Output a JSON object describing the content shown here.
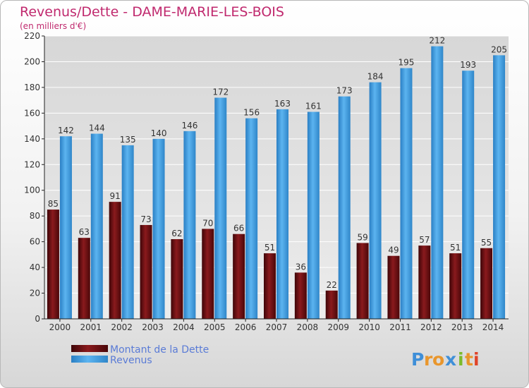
{
  "header": {
    "title": "Revenus/Dette - DAME-MARIE-LES-BOIS",
    "subtitle": "(en milliers d'€)"
  },
  "legend": {
    "dette": "Montant de la Dette",
    "revenus": "Revenus"
  },
  "logo": "Proxiti",
  "colors": {
    "dette": "#6b0f12",
    "revenus": "#3f9fe2",
    "title": "#c0296e"
  },
  "chart_data": {
    "type": "bar",
    "title": "Revenus/Dette - DAME-MARIE-LES-BOIS",
    "subtitle": "(en milliers d'€)",
    "categories": [
      "2000",
      "2001",
      "2002",
      "2003",
      "2004",
      "2005",
      "2006",
      "2007",
      "2008",
      "2009",
      "2010",
      "2011",
      "2012",
      "2013",
      "2014"
    ],
    "series": [
      {
        "name": "Montant de la Dette",
        "values": [
          85,
          63,
          91,
          73,
          62,
          70,
          66,
          51,
          36,
          22,
          59,
          49,
          57,
          51,
          55
        ]
      },
      {
        "name": "Revenus",
        "values": [
          142,
          144,
          135,
          140,
          146,
          172,
          156,
          163,
          161,
          173,
          184,
          195,
          212,
          193,
          205
        ]
      }
    ],
    "ylim": [
      0,
      220
    ],
    "yticks": [
      0,
      20,
      40,
      60,
      80,
      100,
      120,
      140,
      160,
      180,
      200,
      220
    ],
    "grid": true,
    "legend_position": "bottom-left"
  }
}
